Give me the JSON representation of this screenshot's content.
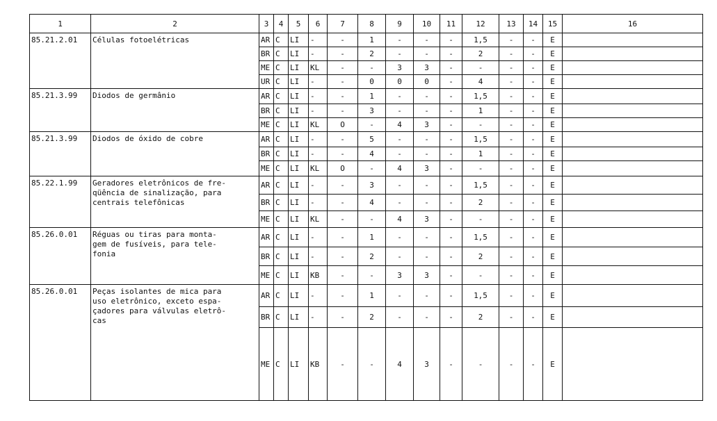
{
  "headers": [
    "1",
    "2",
    "3",
    "4",
    "5",
    "6",
    "7",
    "8",
    "9",
    "10",
    "11",
    "12",
    "13",
    "14",
    "15",
    "16"
  ],
  "groups": [
    {
      "code": "85.21.2.01",
      "desc": "Células fotoelétricas",
      "heights": [
        20,
        20,
        20,
        20
      ],
      "rows": [
        [
          "AR",
          "C",
          "LI",
          "-",
          "-",
          "1",
          "-",
          "-",
          "-",
          "1,5",
          "-",
          "-",
          "E",
          ""
        ],
        [
          "BR",
          "C",
          "LI",
          "-",
          "-",
          "2",
          "-",
          "-",
          "-",
          "2",
          "-",
          "-",
          "E",
          ""
        ],
        [
          "ME",
          "C",
          "LI",
          "KL",
          "-",
          "-",
          "3",
          "3",
          "-",
          "-",
          "-",
          "-",
          "E",
          ""
        ],
        [
          "UR",
          "C",
          "LI",
          "-",
          "-",
          "0",
          "0",
          "0",
          "-",
          "4",
          "-",
          "-",
          "E",
          ""
        ]
      ]
    },
    {
      "code": "85.21.3.99",
      "desc": "Diodos de germânio",
      "heights": [
        22,
        20,
        20
      ],
      "rows": [
        [
          "AR",
          "C",
          "LI",
          "-",
          "-",
          "1",
          "-",
          "-",
          "-",
          "1,5",
          "-",
          "-",
          "E",
          ""
        ],
        [
          "BR",
          "C",
          "LI",
          "-",
          "-",
          "3",
          "-",
          "-",
          "-",
          "1",
          "-",
          "-",
          "E",
          ""
        ],
        [
          "ME",
          "C",
          "LI",
          "KL",
          "O",
          "-",
          "4",
          "3",
          "-",
          "-",
          "-",
          "-",
          "E",
          ""
        ]
      ]
    },
    {
      "code": "85.21.3.99",
      "desc": "Diodos de óxido de cobre",
      "heights": [
        22,
        20,
        22
      ],
      "rows": [
        [
          "AR",
          "C",
          "LI",
          "-",
          "-",
          "5",
          "-",
          "-",
          "-",
          "1,5",
          "-",
          "-",
          "E",
          ""
        ],
        [
          "BR",
          "C",
          "LI",
          "-",
          "-",
          "4",
          "-",
          "-",
          "-",
          "1",
          "-",
          "-",
          "E",
          ""
        ],
        [
          "ME",
          "C",
          "LI",
          "KL",
          "O",
          "-",
          "4",
          "3",
          "-",
          "-",
          "-",
          "-",
          "E",
          ""
        ]
      ]
    },
    {
      "code": "85.22.1.99",
      "desc": "Geradores eletrônicos de fre-\nqüência de sinalização, para\ncentrais telefônicas",
      "heights": [
        26,
        24,
        24
      ],
      "rows": [
        [
          "AR",
          "C",
          "LI",
          "-",
          "-",
          "3",
          "-",
          "-",
          "-",
          "1,5",
          "-",
          "-",
          "E",
          ""
        ],
        [
          "BR",
          "C",
          "LI",
          "-",
          "-",
          "4",
          "-",
          "-",
          "-",
          "2",
          "-",
          "-",
          "E",
          ""
        ],
        [
          "ME",
          "C",
          "LI",
          "KL",
          "-",
          "-",
          "4",
          "3",
          "-",
          "-",
          "-",
          "-",
          "E",
          ""
        ]
      ]
    },
    {
      "code": "85.26.0.01",
      "desc": "Réguas ou tiras para monta-\ngem de fusíveis, para tele-\nfonia",
      "heights": [
        28,
        27,
        27
      ],
      "rows": [
        [
          "AR",
          "C",
          "LI",
          "-",
          "-",
          "1",
          "-",
          "-",
          "-",
          "1,5",
          "-",
          "-",
          "E",
          ""
        ],
        [
          "BR",
          "C",
          "LI",
          "-",
          "-",
          "2",
          "-",
          "-",
          "-",
          "2",
          "-",
          "-",
          "E",
          ""
        ],
        [
          "ME",
          "C",
          "LI",
          "KB",
          "-",
          "-",
          "3",
          "3",
          "-",
          "-",
          "-",
          "-",
          "E",
          ""
        ]
      ]
    },
    {
      "code": "85.26.0.01",
      "desc": "Peças isolantes de mica para\nuso eletrônico, exceto espa-\nçadores para válvulas eletrô-\ncas",
      "heights": [
        32,
        30,
        105
      ],
      "rows": [
        [
          "AR",
          "C",
          "LI",
          "-",
          "-",
          "1",
          "-",
          "-",
          "-",
          "1,5",
          "-",
          "-",
          "E",
          ""
        ],
        [
          "BR",
          "C",
          "LI",
          "-",
          "-",
          "2",
          "-",
          "-",
          "-",
          "2",
          "-",
          "-",
          "E",
          ""
        ],
        [
          "ME",
          "C",
          "LI",
          "KB",
          "-",
          "-",
          "4",
          "3",
          "-",
          "-",
          "-",
          "-",
          "E",
          ""
        ]
      ]
    }
  ]
}
